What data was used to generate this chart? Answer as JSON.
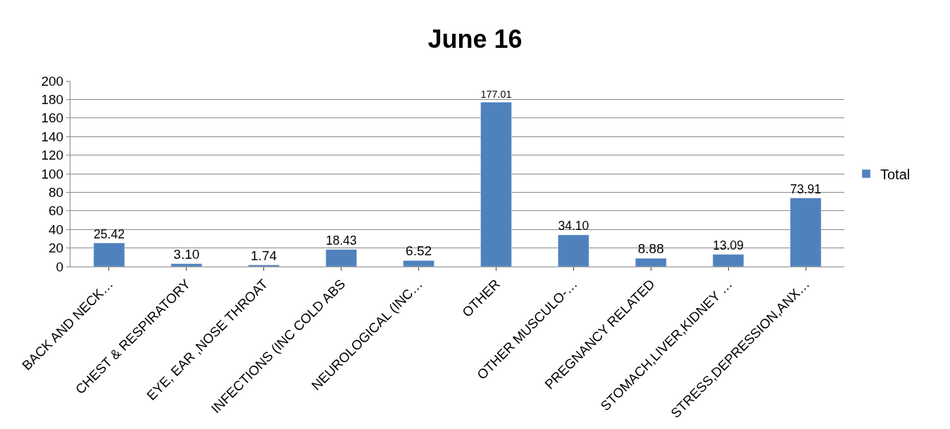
{
  "chart_data": {
    "type": "bar",
    "title": "June 16",
    "categories": [
      "BACK AND NECK…",
      "CHEST & RESPIRATORY",
      "EYE, EAR ,NOSE THROAT",
      "INFECTIONS (INC COLD ABS",
      "NEUROLOGICAL (INC…",
      "OTHER",
      "OTHER MUSCULO-…",
      "PREGNANCY RELATED",
      "STOMACH,LIVER,KIDNEY …",
      "STRESS,DEPRESSION,ANX…"
    ],
    "series": [
      {
        "name": "Total",
        "color": "#4f81bd",
        "values": [
          25.42,
          3.1,
          1.74,
          18.43,
          6.52,
          177.01,
          34.1,
          8.88,
          13.09,
          73.91
        ],
        "value_labels": [
          "25.42",
          "3.10",
          "1.74",
          "18.43",
          "6.52",
          "177.01",
          "34.10",
          "8.88",
          "13.09",
          "73.91"
        ]
      }
    ],
    "ylim": [
      0,
      200
    ],
    "yticks": [
      0,
      20,
      40,
      60,
      80,
      100,
      120,
      140,
      160,
      180,
      200
    ],
    "grid": "y",
    "legend": "right"
  }
}
